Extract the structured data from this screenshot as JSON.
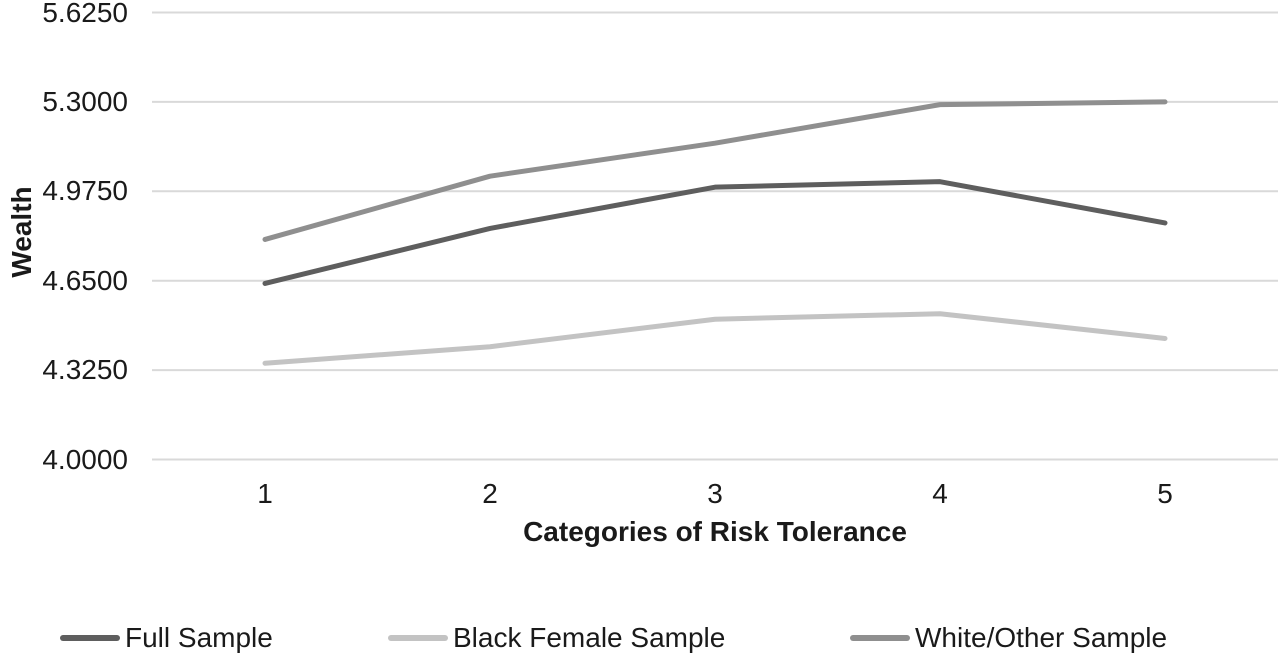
{
  "chart_data": {
    "type": "line",
    "x": [
      "1",
      "2",
      "3",
      "4",
      "5"
    ],
    "xlabel": "Categories of Risk Tolerance",
    "ylabel": "Wealth",
    "ylim": [
      4.0,
      5.625
    ],
    "yticks": [
      "4.0000",
      "4.3250",
      "4.6500",
      "4.9750",
      "5.3000",
      "5.6250"
    ],
    "grid": "horizontal-only",
    "legend_position": "bottom",
    "background_color": "#ffffff",
    "gridline_color": "#d9d9d9",
    "text_color": "#1a1a1a",
    "series": [
      {
        "name": "Full Sample",
        "color": "#5e5e5e",
        "values": [
          4.64,
          4.84,
          4.99,
          5.01,
          4.86
        ]
      },
      {
        "name": "Black Female Sample",
        "color": "#c3c3c3",
        "values": [
          4.35,
          4.41,
          4.51,
          4.53,
          4.44
        ]
      },
      {
        "name": "White/Other Sample",
        "color": "#8f8f8f",
        "values": [
          4.8,
          5.03,
          5.15,
          5.29,
          5.3
        ]
      }
    ]
  }
}
